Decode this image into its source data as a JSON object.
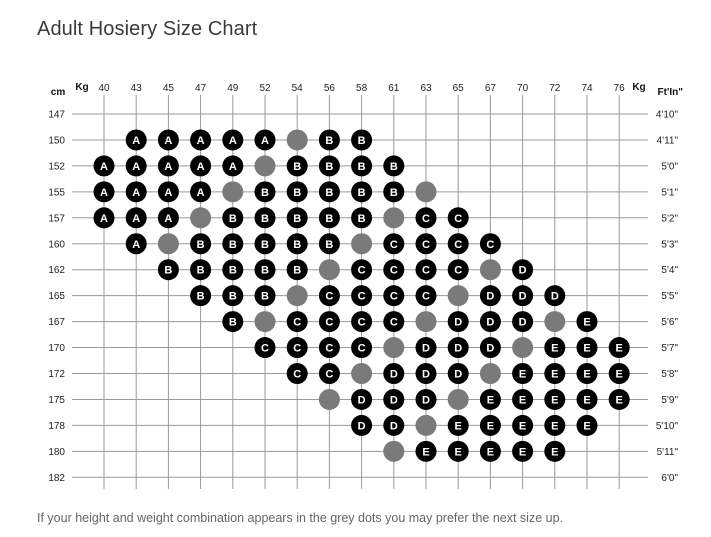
{
  "title": "Adult Hosiery Size Chart",
  "footnote": "If your height and weight combination appears in the grey dots you may prefer the next size up.",
  "colors": {
    "size": "#000000",
    "grey": "#7a7a7a",
    "grid": "#9a9a9a",
    "label": "#ffffff"
  },
  "chart_data": {
    "type": "scatter",
    "corner_labels": {
      "left_unit": "cm",
      "top_left_unit": "Kg",
      "top_right_unit": "Kg",
      "right_unit": "Ft'In\""
    },
    "x_ticks_kg": [
      "40",
      "43",
      "45",
      "47",
      "49",
      "52",
      "54",
      "56",
      "58",
      "61",
      "63",
      "65",
      "67",
      "70",
      "72",
      "74",
      "76"
    ],
    "y_ticks_cm": [
      "147",
      "150",
      "152",
      "155",
      "157",
      "160",
      "162",
      "165",
      "167",
      "170",
      "172",
      "175",
      "178",
      "180",
      "182"
    ],
    "y_ticks_ftin": [
      "4'10\"",
      "4'11\"",
      "5'0\"",
      "5'1\"",
      "5'2\"",
      "5'3\"",
      "5'4\"",
      "5'5\"",
      "5'6\"",
      "5'7\"",
      "5'8\"",
      "5'9\"",
      "5'10\"",
      "5'11\"",
      "6'0\""
    ],
    "grey_meaning": "grey dots",
    "rows": [
      {
        "cm": "150",
        "cells": [
          [
            43,
            "A"
          ],
          [
            45,
            "A"
          ],
          [
            47,
            "A"
          ],
          [
            49,
            "A"
          ],
          [
            52,
            "A"
          ],
          [
            54,
            "grey"
          ],
          [
            56,
            "B"
          ],
          [
            58,
            "B"
          ]
        ]
      },
      {
        "cm": "152",
        "cells": [
          [
            40,
            "A"
          ],
          [
            43,
            "A"
          ],
          [
            45,
            "A"
          ],
          [
            47,
            "A"
          ],
          [
            49,
            "A"
          ],
          [
            52,
            "grey"
          ],
          [
            54,
            "B"
          ],
          [
            56,
            "B"
          ],
          [
            58,
            "B"
          ],
          [
            61,
            "B"
          ]
        ]
      },
      {
        "cm": "155",
        "cells": [
          [
            40,
            "A"
          ],
          [
            43,
            "A"
          ],
          [
            45,
            "A"
          ],
          [
            47,
            "A"
          ],
          [
            49,
            "grey"
          ],
          [
            52,
            "B"
          ],
          [
            54,
            "B"
          ],
          [
            56,
            "B"
          ],
          [
            58,
            "B"
          ],
          [
            61,
            "B"
          ],
          [
            63,
            "grey"
          ]
        ]
      },
      {
        "cm": "157",
        "cells": [
          [
            40,
            "A"
          ],
          [
            43,
            "A"
          ],
          [
            45,
            "A"
          ],
          [
            47,
            "grey"
          ],
          [
            49,
            "B"
          ],
          [
            52,
            "B"
          ],
          [
            54,
            "B"
          ],
          [
            56,
            "B"
          ],
          [
            58,
            "B"
          ],
          [
            61,
            "grey"
          ],
          [
            63,
            "C"
          ],
          [
            65,
            "C"
          ]
        ]
      },
      {
        "cm": "160",
        "cells": [
          [
            43,
            "A"
          ],
          [
            45,
            "grey"
          ],
          [
            47,
            "B"
          ],
          [
            49,
            "B"
          ],
          [
            52,
            "B"
          ],
          [
            54,
            "B"
          ],
          [
            56,
            "B"
          ],
          [
            58,
            "grey"
          ],
          [
            61,
            "C"
          ],
          [
            63,
            "C"
          ],
          [
            65,
            "C"
          ],
          [
            67,
            "C"
          ]
        ]
      },
      {
        "cm": "162",
        "cells": [
          [
            45,
            "B"
          ],
          [
            47,
            "B"
          ],
          [
            49,
            "B"
          ],
          [
            52,
            "B"
          ],
          [
            54,
            "B"
          ],
          [
            56,
            "grey"
          ],
          [
            58,
            "C"
          ],
          [
            61,
            "C"
          ],
          [
            63,
            "C"
          ],
          [
            65,
            "C"
          ],
          [
            67,
            "grey"
          ],
          [
            70,
            "D"
          ]
        ]
      },
      {
        "cm": "165",
        "cells": [
          [
            47,
            "B"
          ],
          [
            49,
            "B"
          ],
          [
            52,
            "B"
          ],
          [
            54,
            "grey"
          ],
          [
            56,
            "C"
          ],
          [
            58,
            "C"
          ],
          [
            61,
            "C"
          ],
          [
            63,
            "C"
          ],
          [
            65,
            "grey"
          ],
          [
            67,
            "D"
          ],
          [
            70,
            "D"
          ],
          [
            72,
            "D"
          ]
        ]
      },
      {
        "cm": "167",
        "cells": [
          [
            49,
            "B"
          ],
          [
            52,
            "grey"
          ],
          [
            54,
            "C"
          ],
          [
            56,
            "C"
          ],
          [
            58,
            "C"
          ],
          [
            61,
            "C"
          ],
          [
            63,
            "grey"
          ],
          [
            65,
            "D"
          ],
          [
            67,
            "D"
          ],
          [
            70,
            "D"
          ],
          [
            72,
            "grey"
          ],
          [
            74,
            "E"
          ]
        ]
      },
      {
        "cm": "170",
        "cells": [
          [
            52,
            "C"
          ],
          [
            54,
            "C"
          ],
          [
            56,
            "C"
          ],
          [
            58,
            "C"
          ],
          [
            61,
            "grey"
          ],
          [
            63,
            "D"
          ],
          [
            65,
            "D"
          ],
          [
            67,
            "D"
          ],
          [
            70,
            "grey"
          ],
          [
            72,
            "E"
          ],
          [
            74,
            "E"
          ],
          [
            76,
            "E"
          ]
        ]
      },
      {
        "cm": "172",
        "cells": [
          [
            54,
            "C"
          ],
          [
            56,
            "C"
          ],
          [
            58,
            "grey"
          ],
          [
            61,
            "D"
          ],
          [
            63,
            "D"
          ],
          [
            65,
            "D"
          ],
          [
            67,
            "grey"
          ],
          [
            70,
            "E"
          ],
          [
            72,
            "E"
          ],
          [
            74,
            "E"
          ],
          [
            76,
            "E"
          ]
        ]
      },
      {
        "cm": "175",
        "cells": [
          [
            56,
            "grey"
          ],
          [
            58,
            "D"
          ],
          [
            61,
            "D"
          ],
          [
            63,
            "D"
          ],
          [
            65,
            "grey"
          ],
          [
            67,
            "E"
          ],
          [
            70,
            "E"
          ],
          [
            72,
            "E"
          ],
          [
            74,
            "E"
          ],
          [
            76,
            "E"
          ]
        ]
      },
      {
        "cm": "178",
        "cells": [
          [
            58,
            "D"
          ],
          [
            61,
            "D"
          ],
          [
            63,
            "grey"
          ],
          [
            65,
            "E"
          ],
          [
            67,
            "E"
          ],
          [
            70,
            "E"
          ],
          [
            72,
            "E"
          ],
          [
            74,
            "E"
          ]
        ]
      },
      {
        "cm": "180",
        "cells": [
          [
            61,
            "grey"
          ],
          [
            63,
            "E"
          ],
          [
            65,
            "E"
          ],
          [
            67,
            "E"
          ],
          [
            70,
            "E"
          ],
          [
            72,
            "E"
          ]
        ]
      }
    ]
  }
}
